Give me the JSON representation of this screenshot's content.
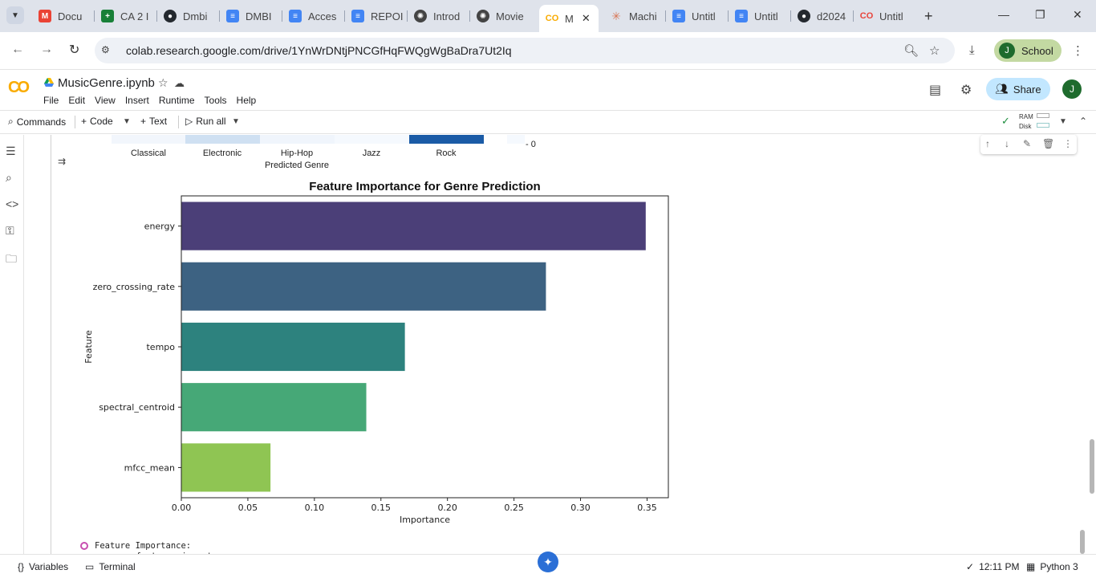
{
  "browser": {
    "tabs": [
      {
        "label": "Docu",
        "icon": "gmail-icon",
        "color": "#ea4335"
      },
      {
        "label": "CA 2 I",
        "icon": "sheets-icon",
        "color": "#188038"
      },
      {
        "label": "Dmbi",
        "icon": "github-icon",
        "color": "#24292f"
      },
      {
        "label": "DMBI",
        "icon": "docs-icon",
        "color": "#4285f4"
      },
      {
        "label": "Acces",
        "icon": "docs-icon",
        "color": "#4285f4"
      },
      {
        "label": "REPOI",
        "icon": "docs-icon",
        "color": "#4285f4"
      },
      {
        "label": "Introd",
        "icon": "openai-icon",
        "color": "#444444"
      },
      {
        "label": "Movie",
        "icon": "openai-icon",
        "color": "#444444"
      },
      {
        "label": "M",
        "icon": "colab-icon",
        "color": "#f9ab00",
        "active": true
      },
      {
        "label": "Machi",
        "icon": "claude-icon",
        "color": "#d97757"
      },
      {
        "label": "Untitl",
        "icon": "docs-icon",
        "color": "#4285f4"
      },
      {
        "label": "Untitl",
        "icon": "docs-icon",
        "color": "#4285f4"
      },
      {
        "label": "d2024",
        "icon": "github-icon",
        "color": "#24292f"
      },
      {
        "label": "Untitl",
        "icon": "colab-icon",
        "color": "#e8453c"
      }
    ],
    "url": "colab.research.google.com/drive/1YnWrDNtjPNCGfHqFWQgWgBaDra7Ut2Iq",
    "profile_initial": "J",
    "profile_name": "School"
  },
  "colab": {
    "notebook_title": "MusicGenre.ipynb",
    "menu": [
      "File",
      "Edit",
      "View",
      "Insert",
      "Runtime",
      "Tools",
      "Help"
    ],
    "share_label": "Share",
    "user_initial": "J",
    "toolbar": {
      "commands": "Commands",
      "code": "Code",
      "text": "Text",
      "run_all": "Run all",
      "ram": "RAM",
      "disk": "Disk"
    }
  },
  "heatmap_remnant": {
    "labels": [
      "Classical",
      "Electronic",
      "Hip-Hop",
      "Jazz",
      "Rock"
    ],
    "xlabel": "Predicted Genre",
    "colorbar_tick": "- 0",
    "cell_colors": [
      "#f2f6fc",
      "#cfe0f2",
      "#f0f5fc",
      "#f5f9fe",
      "#1b5ba6"
    ]
  },
  "chart_data": {
    "type": "bar",
    "orientation": "horizontal",
    "title": "Feature Importance for Genre Prediction",
    "xlabel": "Importance",
    "ylabel": "Feature",
    "categories": [
      "energy",
      "zero_crossing_rate",
      "tempo",
      "spectral_centroid",
      "mfcc_mean"
    ],
    "values": [
      0.349,
      0.274,
      0.168,
      0.139,
      0.067
    ],
    "colors": [
      "#4b3f78",
      "#3d6282",
      "#2d827e",
      "#46a877",
      "#8fc553"
    ],
    "xlim": [
      0,
      0.366
    ],
    "xticks": [
      "0.00",
      "0.05",
      "0.10",
      "0.15",
      "0.20",
      "0.25",
      "0.30",
      "0.35"
    ],
    "grid": false
  },
  "output": {
    "line1": "Feature Importance:",
    "line2": "           feature  importance"
  },
  "statusbar": {
    "variables": "Variables",
    "terminal": "Terminal",
    "time": "12:11 PM",
    "runtime": "Python 3"
  }
}
